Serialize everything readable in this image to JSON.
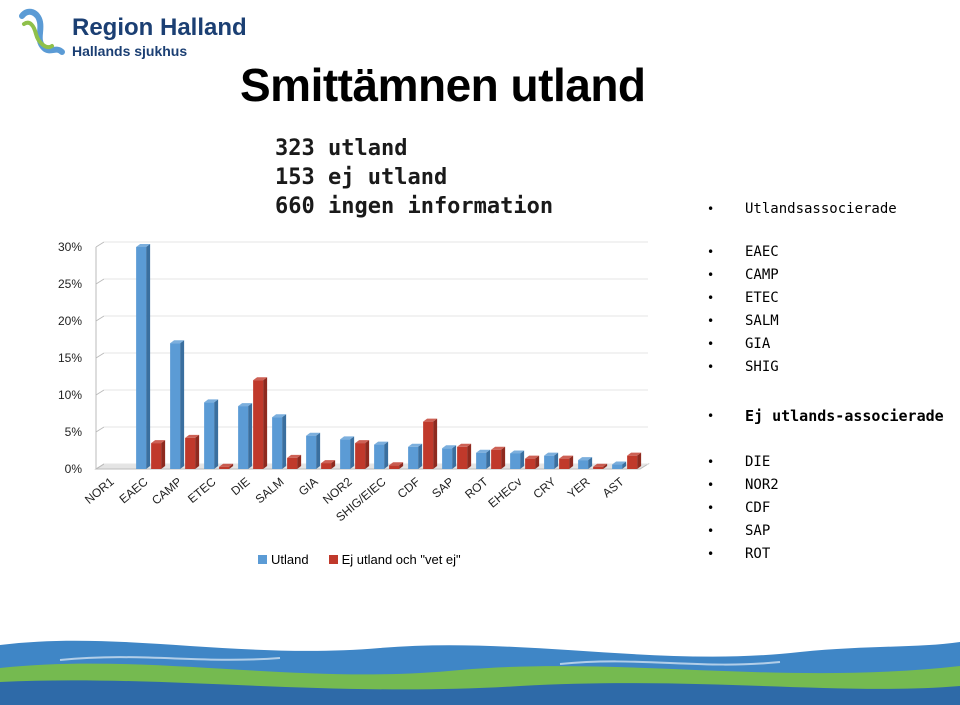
{
  "logo": {
    "title": "Region Halland",
    "subtitle": "Hallands sjukhus"
  },
  "page_title": "Smittämnen utland",
  "summary": [
    "323 utland",
    "153 ej utland",
    "660 ingen information"
  ],
  "side_panel": {
    "group1": {
      "heading": "Utlandsassocierade",
      "items": [
        "EAEC",
        "CAMP",
        "ETEC",
        "SALM",
        "GIA",
        "SHIG"
      ]
    },
    "group2": {
      "heading": "Ej utlands-associerade",
      "items": [
        "DIE",
        "NOR2",
        "CDF",
        "SAP",
        "ROT"
      ]
    }
  },
  "colors": {
    "utland": "#5b9bd5",
    "ej_utland": "#c0392b",
    "title_blue": "#1b3f73"
  },
  "chart_data": {
    "type": "bar",
    "categories": [
      "NOR1",
      "EAEC",
      "CAMP",
      "ETEC",
      "DIE",
      "SALM",
      "GIA",
      "NOR2",
      "SHIG/EIEC",
      "CDF",
      "SAP",
      "ROT",
      "EHECv",
      "CRY",
      "YER",
      "AST"
    ],
    "series": [
      {
        "name": "Utland",
        "values": [
          0,
          30,
          17,
          9,
          8.5,
          7,
          4.5,
          4,
          3.3,
          3,
          2.8,
          2.2,
          2.1,
          1.8,
          1.2,
          0.6
        ]
      },
      {
        "name": "Ej utland och \"vet ej\"",
        "values": [
          0,
          3.5,
          4.2,
          0.3,
          12,
          1.5,
          0.8,
          3.5,
          0.5,
          6.4,
          3,
          2.6,
          1.4,
          1.4,
          0.3,
          1.8
        ]
      }
    ],
    "yticks": [
      "0%",
      "5%",
      "10%",
      "15%",
      "20%",
      "25%",
      "30%"
    ],
    "ylim": [
      0,
      30
    ],
    "legend": [
      "Utland",
      "Ej utland och \"vet ej\""
    ],
    "legend_position": "bottom"
  }
}
